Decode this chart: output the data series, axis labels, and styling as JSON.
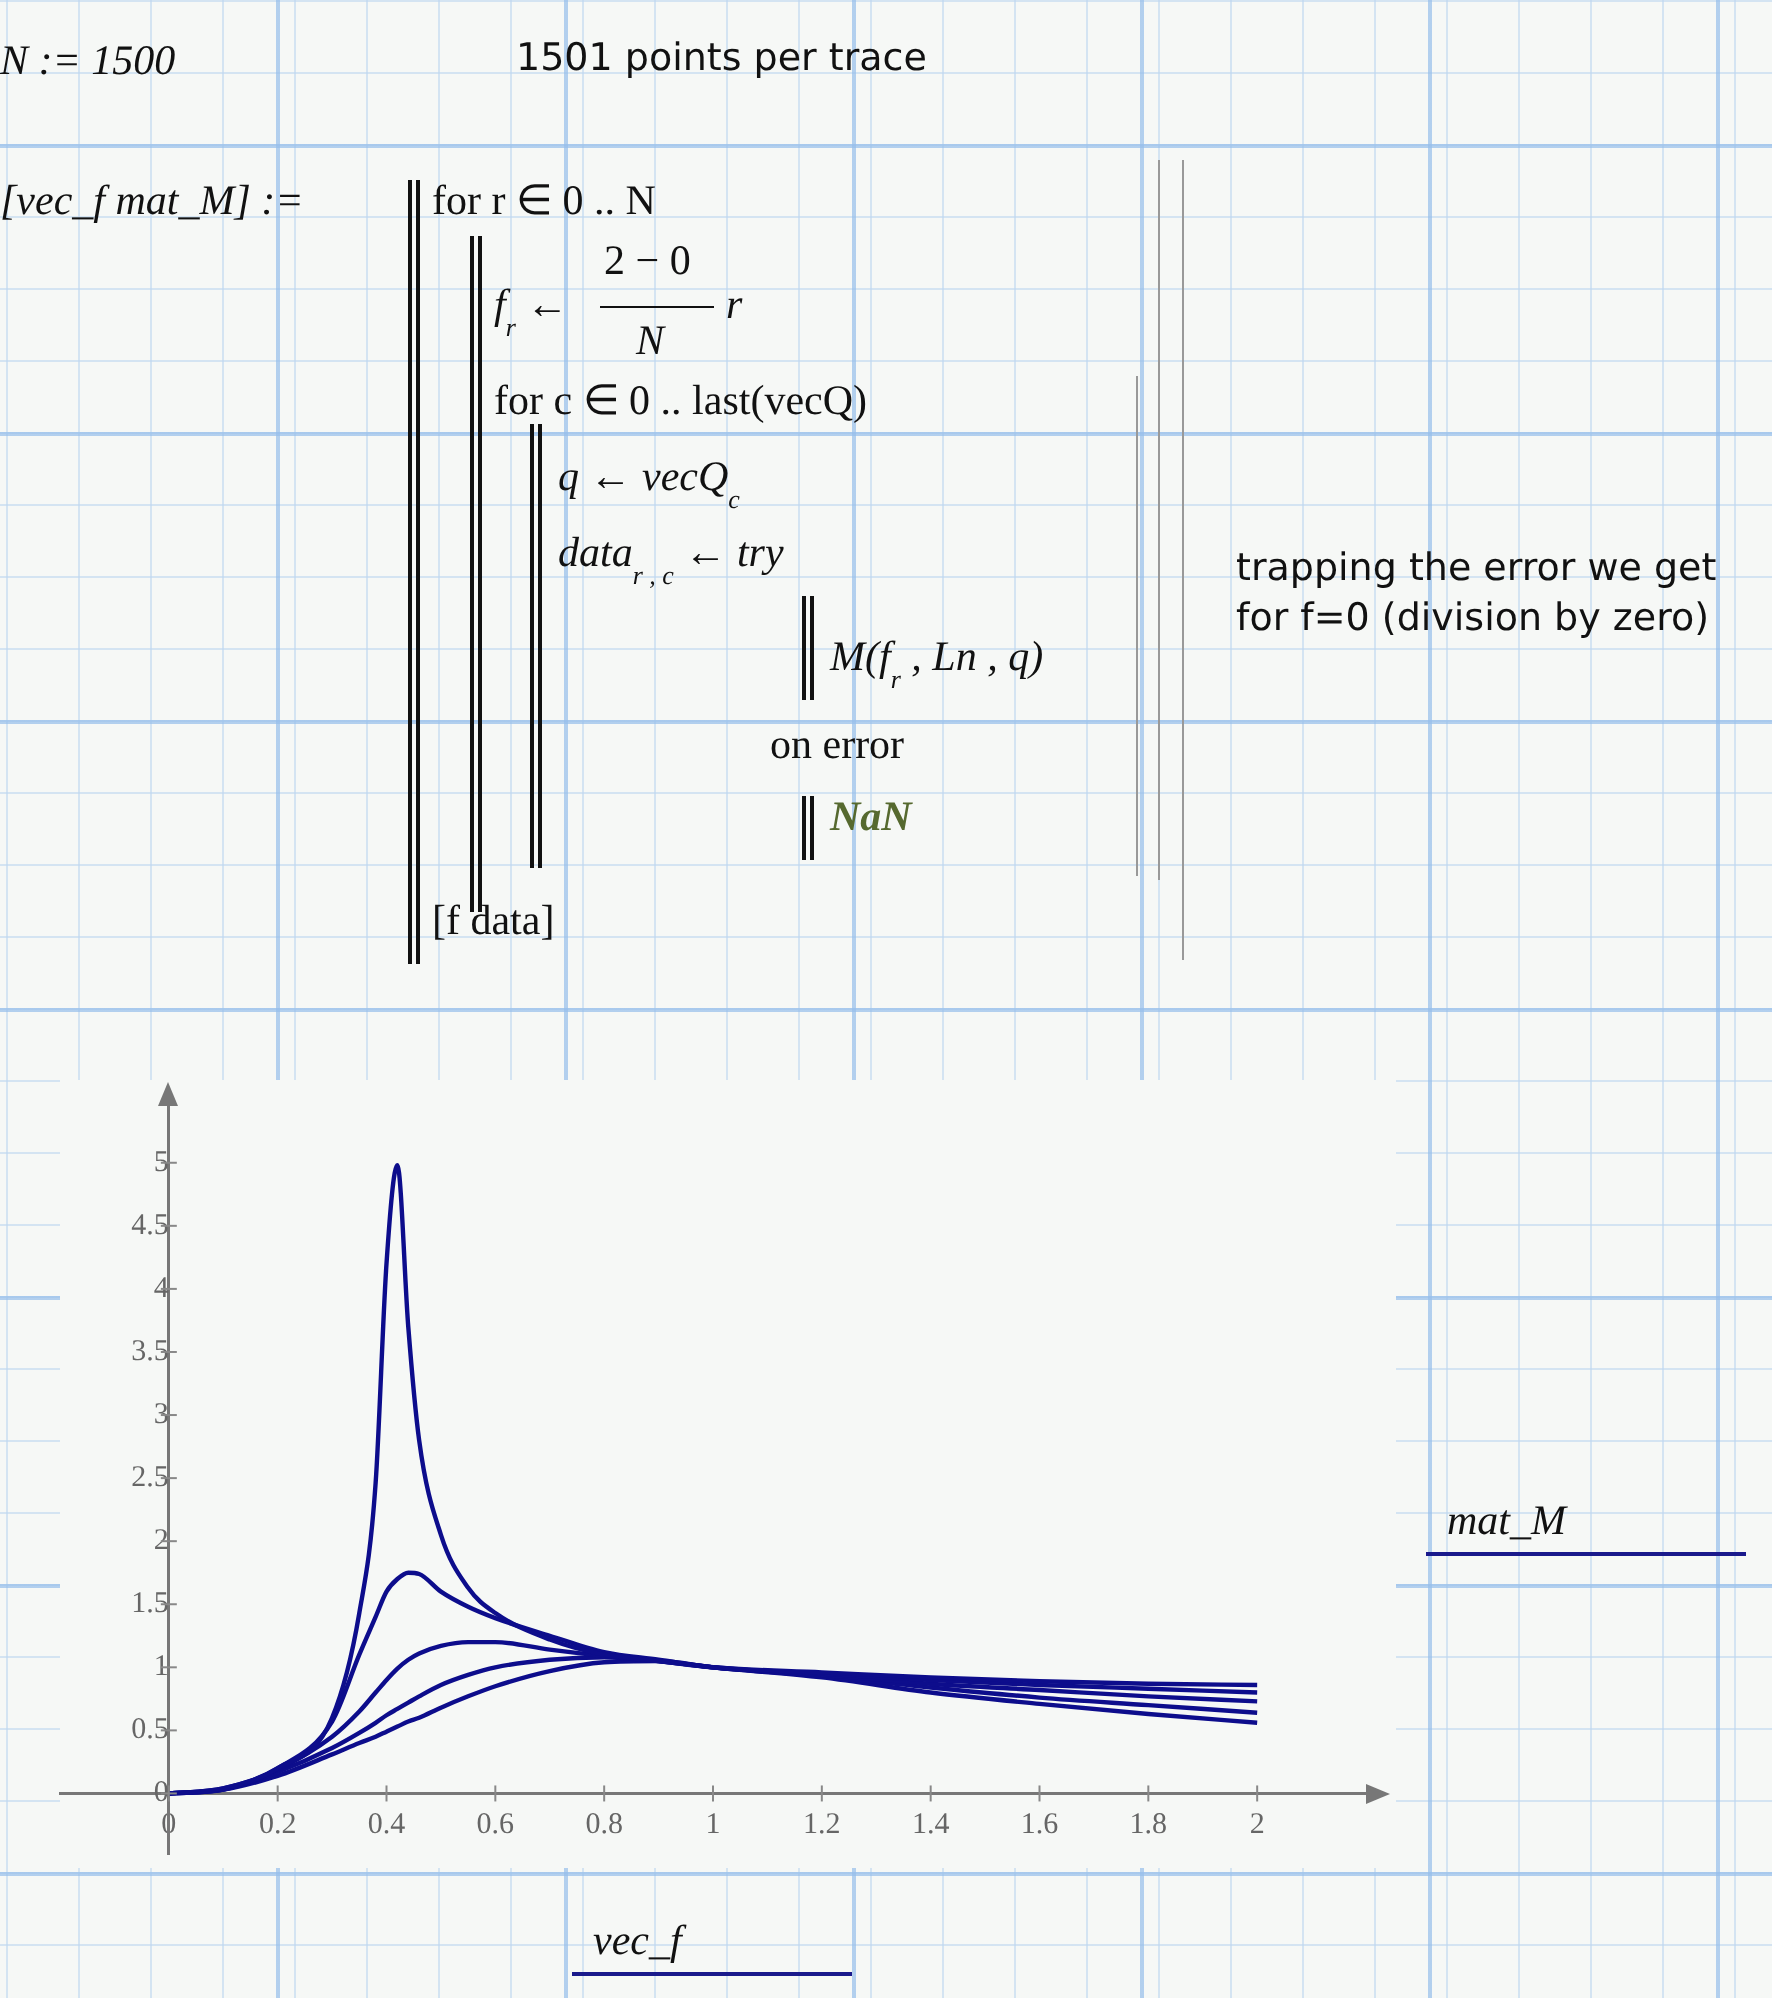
{
  "chart_data": {
    "type": "line",
    "xlabel": "vec_f",
    "ylabel": "mat_M",
    "x": [
      0,
      0.1,
      0.2,
      0.3,
      0.35,
      0.38,
      0.4,
      0.42,
      0.44,
      0.46,
      0.5,
      0.55,
      0.6,
      0.7,
      0.8,
      0.9,
      1,
      1.2,
      1.4,
      1.6,
      1.8,
      2
    ],
    "series": [
      {
        "color": "#0d0d8c",
        "values": [
          0,
          0.04,
          0.2,
          0.6,
          1.43,
          2.46,
          4.2,
          4.98,
          3.7,
          2.8,
          2.05,
          1.63,
          1.43,
          1.22,
          1.1,
          1.05,
          1,
          0.96,
          0.92,
          0.89,
          0.87,
          0.86
        ]
      },
      {
        "color": "#0d0d8c",
        "values": [
          0,
          0.04,
          0.2,
          0.57,
          1.1,
          1.4,
          1.6,
          1.7,
          1.75,
          1.74,
          1.6,
          1.48,
          1.39,
          1.25,
          1.12,
          1.06,
          1,
          0.95,
          0.9,
          0.86,
          0.83,
          0.8
        ]
      },
      {
        "color": "#0d0d8c",
        "values": [
          0,
          0.03,
          0.19,
          0.45,
          0.65,
          0.8,
          0.9,
          0.99,
          1.06,
          1.11,
          1.17,
          1.2,
          1.2,
          1.14,
          1.09,
          1.05,
          1,
          0.94,
          0.87,
          0.82,
          0.77,
          0.73
        ]
      },
      {
        "color": "#0d0d8c",
        "values": [
          0,
          0.03,
          0.17,
          0.36,
          0.48,
          0.56,
          0.62,
          0.67,
          0.72,
          0.77,
          0.86,
          0.94,
          1,
          1.06,
          1.08,
          1.05,
          1,
          0.93,
          0.84,
          0.76,
          0.7,
          0.64
        ]
      },
      {
        "color": "#0d0d8c",
        "values": [
          0,
          0.03,
          0.14,
          0.31,
          0.4,
          0.45,
          0.49,
          0.53,
          0.57,
          0.6,
          0.68,
          0.77,
          0.85,
          0.97,
          1.04,
          1.05,
          1,
          0.92,
          0.8,
          0.71,
          0.63,
          0.56
        ]
      }
    ],
    "xlim": [
      -0.2,
      2.2
    ],
    "ylim": [
      -0.48,
      5.45
    ],
    "xticks": [
      0,
      0.2,
      0.4,
      0.6,
      0.8,
      1,
      1.2,
      1.4,
      1.6,
      1.8,
      2
    ],
    "yticks": [
      0,
      0.5,
      1,
      1.5,
      2,
      2.5,
      3,
      3.5,
      4,
      4.5,
      5
    ],
    "grid": false,
    "legend": false,
    "marker": "none",
    "line_style": "solid",
    "annotations": [
      "N := 1500",
      "1501 points per trace",
      "[vec_f  mat_M] :=",
      "for r ∈ 0 .. N",
      "f$_{r}$ ←",
      "2 − 0",
      "N",
      "r",
      "for c ∈ 0 .. last(vecQ)",
      "q ← vecQ$_{c}$",
      "data$_{r , c}$ ← try",
      "M(f$_{r}$ , Ln , q)",
      "on error",
      "NaN",
      "[f  data]",
      "trapping the error we get for f=0 (division by zero)"
    ]
  }
}
